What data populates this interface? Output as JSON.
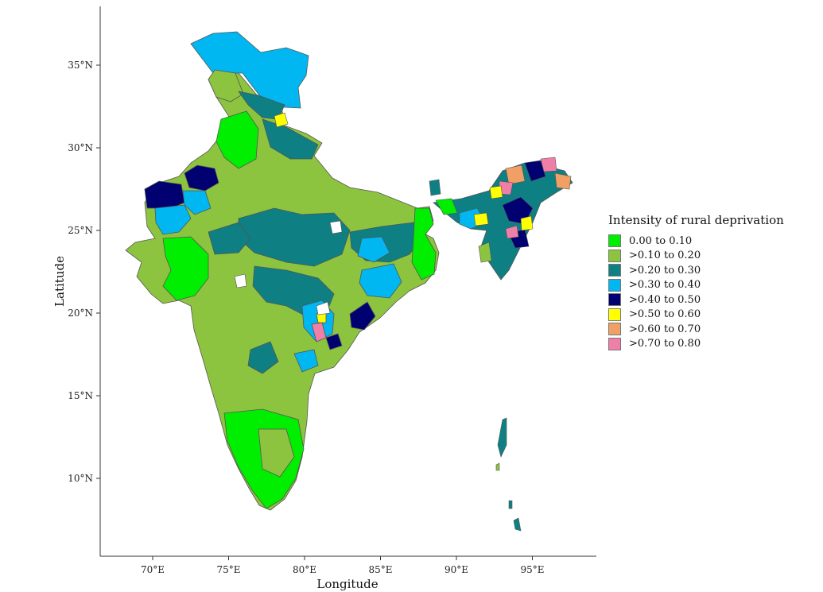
{
  "map": {
    "x_axis_title": "Longitude",
    "y_axis_title": "Latitude",
    "x_ticks": [
      {
        "value": 70,
        "label": "70°E"
      },
      {
        "value": 75,
        "label": "75°E"
      },
      {
        "value": 80,
        "label": "80°E"
      },
      {
        "value": 85,
        "label": "85°E"
      },
      {
        "value": 90,
        "label": "90°E"
      },
      {
        "value": 95,
        "label": "95°E"
      }
    ],
    "y_ticks": [
      {
        "value": 10,
        "label": "10°N"
      },
      {
        "value": 15,
        "label": "15°N"
      },
      {
        "value": 20,
        "label": "20°N"
      },
      {
        "value": 25,
        "label": "25°N"
      },
      {
        "value": 30,
        "label": "30°N"
      },
      {
        "value": 35,
        "label": "35°N"
      }
    ],
    "x_range": [
      66.5,
      98.8
    ],
    "y_range": [
      6.0,
      38.5
    ],
    "grid": false,
    "border_color": "#555555"
  },
  "legend": {
    "title": "Intensity of rural deprivation",
    "position": "right",
    "items": [
      {
        "label": "0.00 to 0.10",
        "color": "#00ee00"
      },
      {
        "label": ">0.10 to 0.20",
        "color": "#8dc43f"
      },
      {
        "label": ">0.20 to 0.30",
        "color": "#0e7f82"
      },
      {
        "label": ">0.30 to 0.40",
        "color": "#00b7f2"
      },
      {
        "label": ">0.40 to 0.50",
        "color": "#000070"
      },
      {
        "label": ">0.50 to 0.60",
        "color": "#ffff00"
      },
      {
        "label": ">0.60 to 0.70",
        "color": "#f0a064"
      },
      {
        "label": ">0.70 to 0.80",
        "color": "#f07fa8"
      }
    ]
  }
}
